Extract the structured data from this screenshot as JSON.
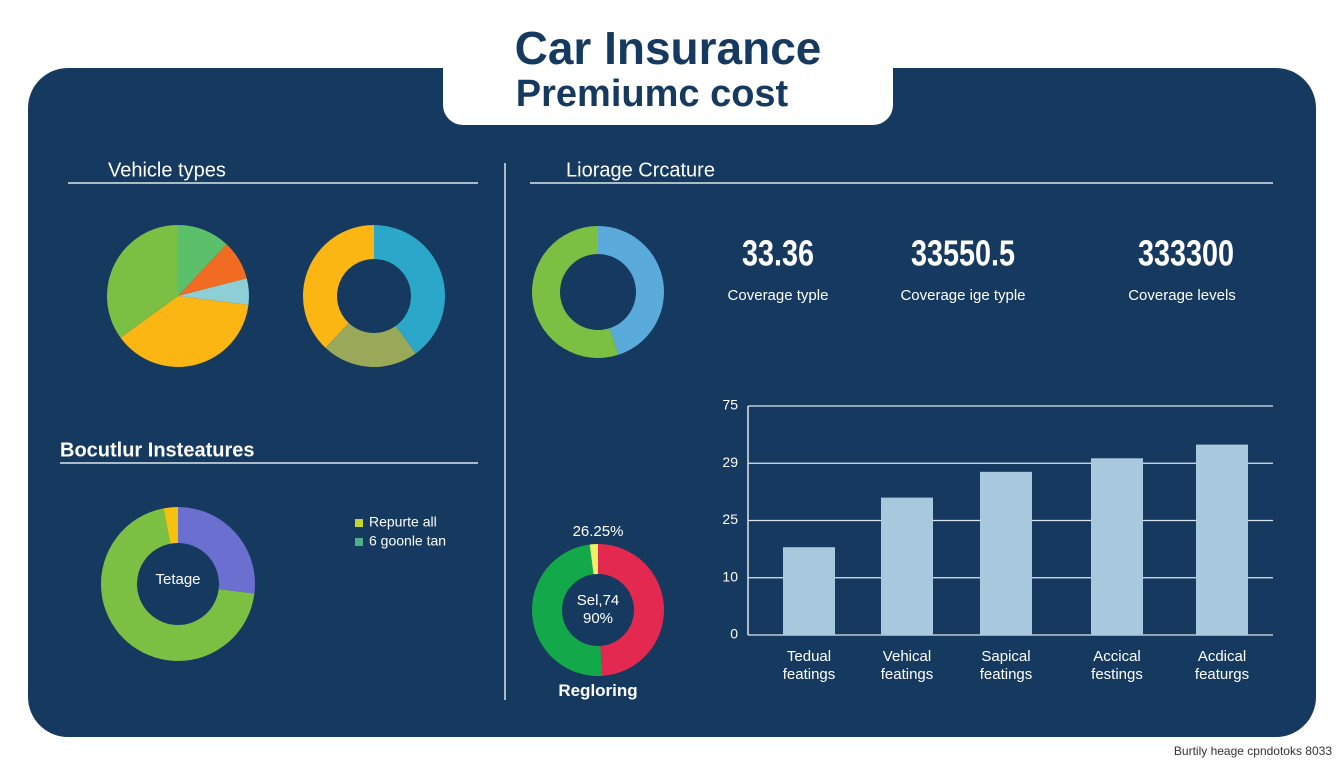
{
  "header": {
    "title": "Car Insurance",
    "subtitle": "Premiumc cost"
  },
  "sections": [
    "Vehicle types",
    "Liorage Crcature",
    "Bocutlur Insteatures"
  ],
  "stats": [
    {
      "value": "33.36",
      "label": "Coverage typle"
    },
    {
      "value": "33550.5",
      "label": "Coverage ige typle"
    },
    {
      "value": "333300",
      "label": "Coverage levels"
    }
  ],
  "footer": "Burtily heage cpndotoks 8033",
  "chart_data": [
    {
      "type": "pie",
      "values": [
        12,
        9,
        6,
        38,
        35
      ],
      "colors": [
        "#5cbf6a",
        "#f26b22",
        "#8ecfd6",
        "#fbb614",
        "#7cc043"
      ]
    },
    {
      "type": "donut",
      "values": [
        40,
        22,
        38
      ],
      "colors": [
        "#2aa7c9",
        "#9aa85a",
        "#fbb614"
      ]
    },
    {
      "type": "donut",
      "values": [
        45,
        55
      ],
      "colors": [
        "#5aaadc",
        "#7cc043"
      ]
    },
    {
      "type": "donut",
      "values": [
        27,
        70,
        3
      ],
      "colors": [
        "#6b6fcf",
        "#7cc043",
        "#f4c20d"
      ],
      "annotations": [
        "Tetage"
      ],
      "legend": [
        {
          "name": "Repurte all",
          "color": "#c5d62e"
        },
        {
          "name": "6 goonle tan",
          "color": "#4cb08a"
        }
      ]
    },
    {
      "type": "donut",
      "title": "Regloring",
      "values": [
        49,
        49,
        2
      ],
      "colors": [
        "#e3294f",
        "#13a84a",
        "#eef06a"
      ],
      "annotations": [
        "26.25%",
        "Sel,74\n90%"
      ]
    },
    {
      "type": "bar",
      "categories": [
        "Tedual\nfeatings",
        "Vehical\nfeatings",
        "Sapical\nfeatings",
        "Accical\nfestings",
        "Acdical\nfeaturgs"
      ],
      "values": [
        18,
        26.6,
        28.4,
        33,
        44
      ],
      "color": "#a8c8de",
      "ylim": [
        0,
        75
      ],
      "yticks": [
        0,
        10,
        25,
        29,
        75
      ],
      "grid": true
    }
  ]
}
